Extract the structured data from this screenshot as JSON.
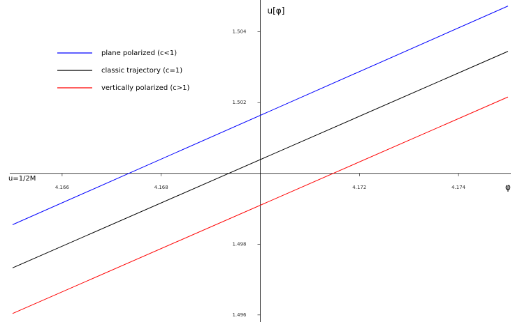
{
  "chart_data": {
    "type": "line",
    "xlabel": "φ",
    "ylabel": "u[φ]",
    "baseline_label": "u=1/2M",
    "xlim": [
      4.165,
      4.175
    ],
    "ylim": [
      1.4958,
      1.5049
    ],
    "xticks": [
      4.166,
      4.168,
      4.172,
      4.174
    ],
    "yticks": [
      1.496,
      1.498,
      1.502,
      1.504
    ],
    "axes_cross": [
      4.17,
      1.5
    ],
    "x": [
      4.165,
      4.175
    ],
    "series": [
      {
        "name": "plane polarized (c<1)",
        "color": "#0000ff",
        "values": [
          1.49855,
          1.50473
        ]
      },
      {
        "name": "classic trajectory (c=1)",
        "color": "#000000",
        "values": [
          1.49733,
          1.50345
        ]
      },
      {
        "name": "vertically polarized (c>1)",
        "color": "#ff0000",
        "values": [
          1.49604,
          1.50216
        ]
      }
    ],
    "legend": "upper-left"
  }
}
